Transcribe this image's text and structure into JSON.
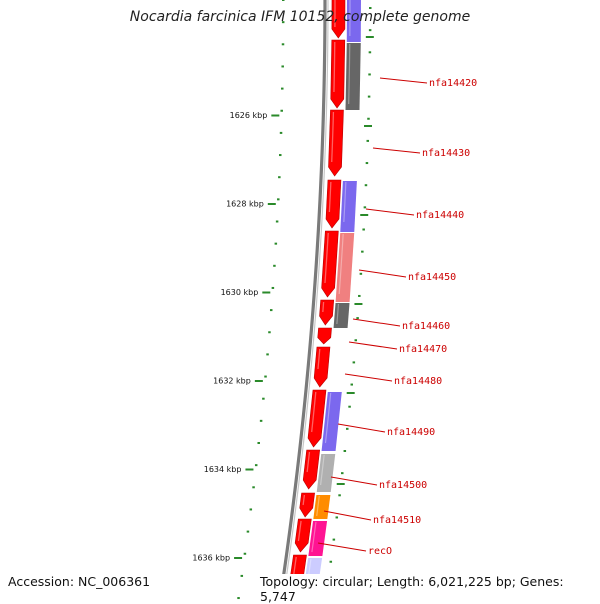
{
  "title": "Nocardia farcinica IFM 10152, complete genome",
  "footer": {
    "accession": "Accession: NC_006361",
    "summary": "Topology: circular; Length: 6,021,225 bp; Genes: 5,747"
  },
  "colors": {
    "backbone": "#7a7a7a",
    "ruler_tick": "#2a8a2a",
    "cds_forward": "#ff0000",
    "gene_label": "#cc0000",
    "ring_purple": "#7b68ee",
    "ring_gray": "#666666",
    "ring_salmon": "#f08080",
    "ring_orange": "#ff8c00",
    "ring_pink": "#ff1493",
    "ring_lightgray": "#b0b0b0",
    "ring_lavender": "#ccccff"
  },
  "ruler": {
    "unit": "kbp",
    "labels": [
      {
        "kbp": 1626,
        "text": "1626 kbp"
      },
      {
        "kbp": 1628,
        "text": "1628 kbp"
      },
      {
        "kbp": 1630,
        "text": "1630 kbp"
      },
      {
        "kbp": 1632,
        "text": "1632 kbp"
      },
      {
        "kbp": 1634,
        "text": "1634 kbp"
      },
      {
        "kbp": 1636,
        "text": "1636 kbp"
      }
    ]
  },
  "gene_labels": [
    {
      "name": "nfa14420"
    },
    {
      "name": "nfa14430"
    },
    {
      "name": "nfa14440"
    },
    {
      "name": "nfa14450"
    },
    {
      "name": "nfa14460"
    },
    {
      "name": "nfa14470"
    },
    {
      "name": "nfa14480"
    },
    {
      "name": "nfa14490"
    },
    {
      "name": "nfa14500"
    },
    {
      "name": "nfa14510"
    },
    {
      "name": "recO"
    }
  ]
}
